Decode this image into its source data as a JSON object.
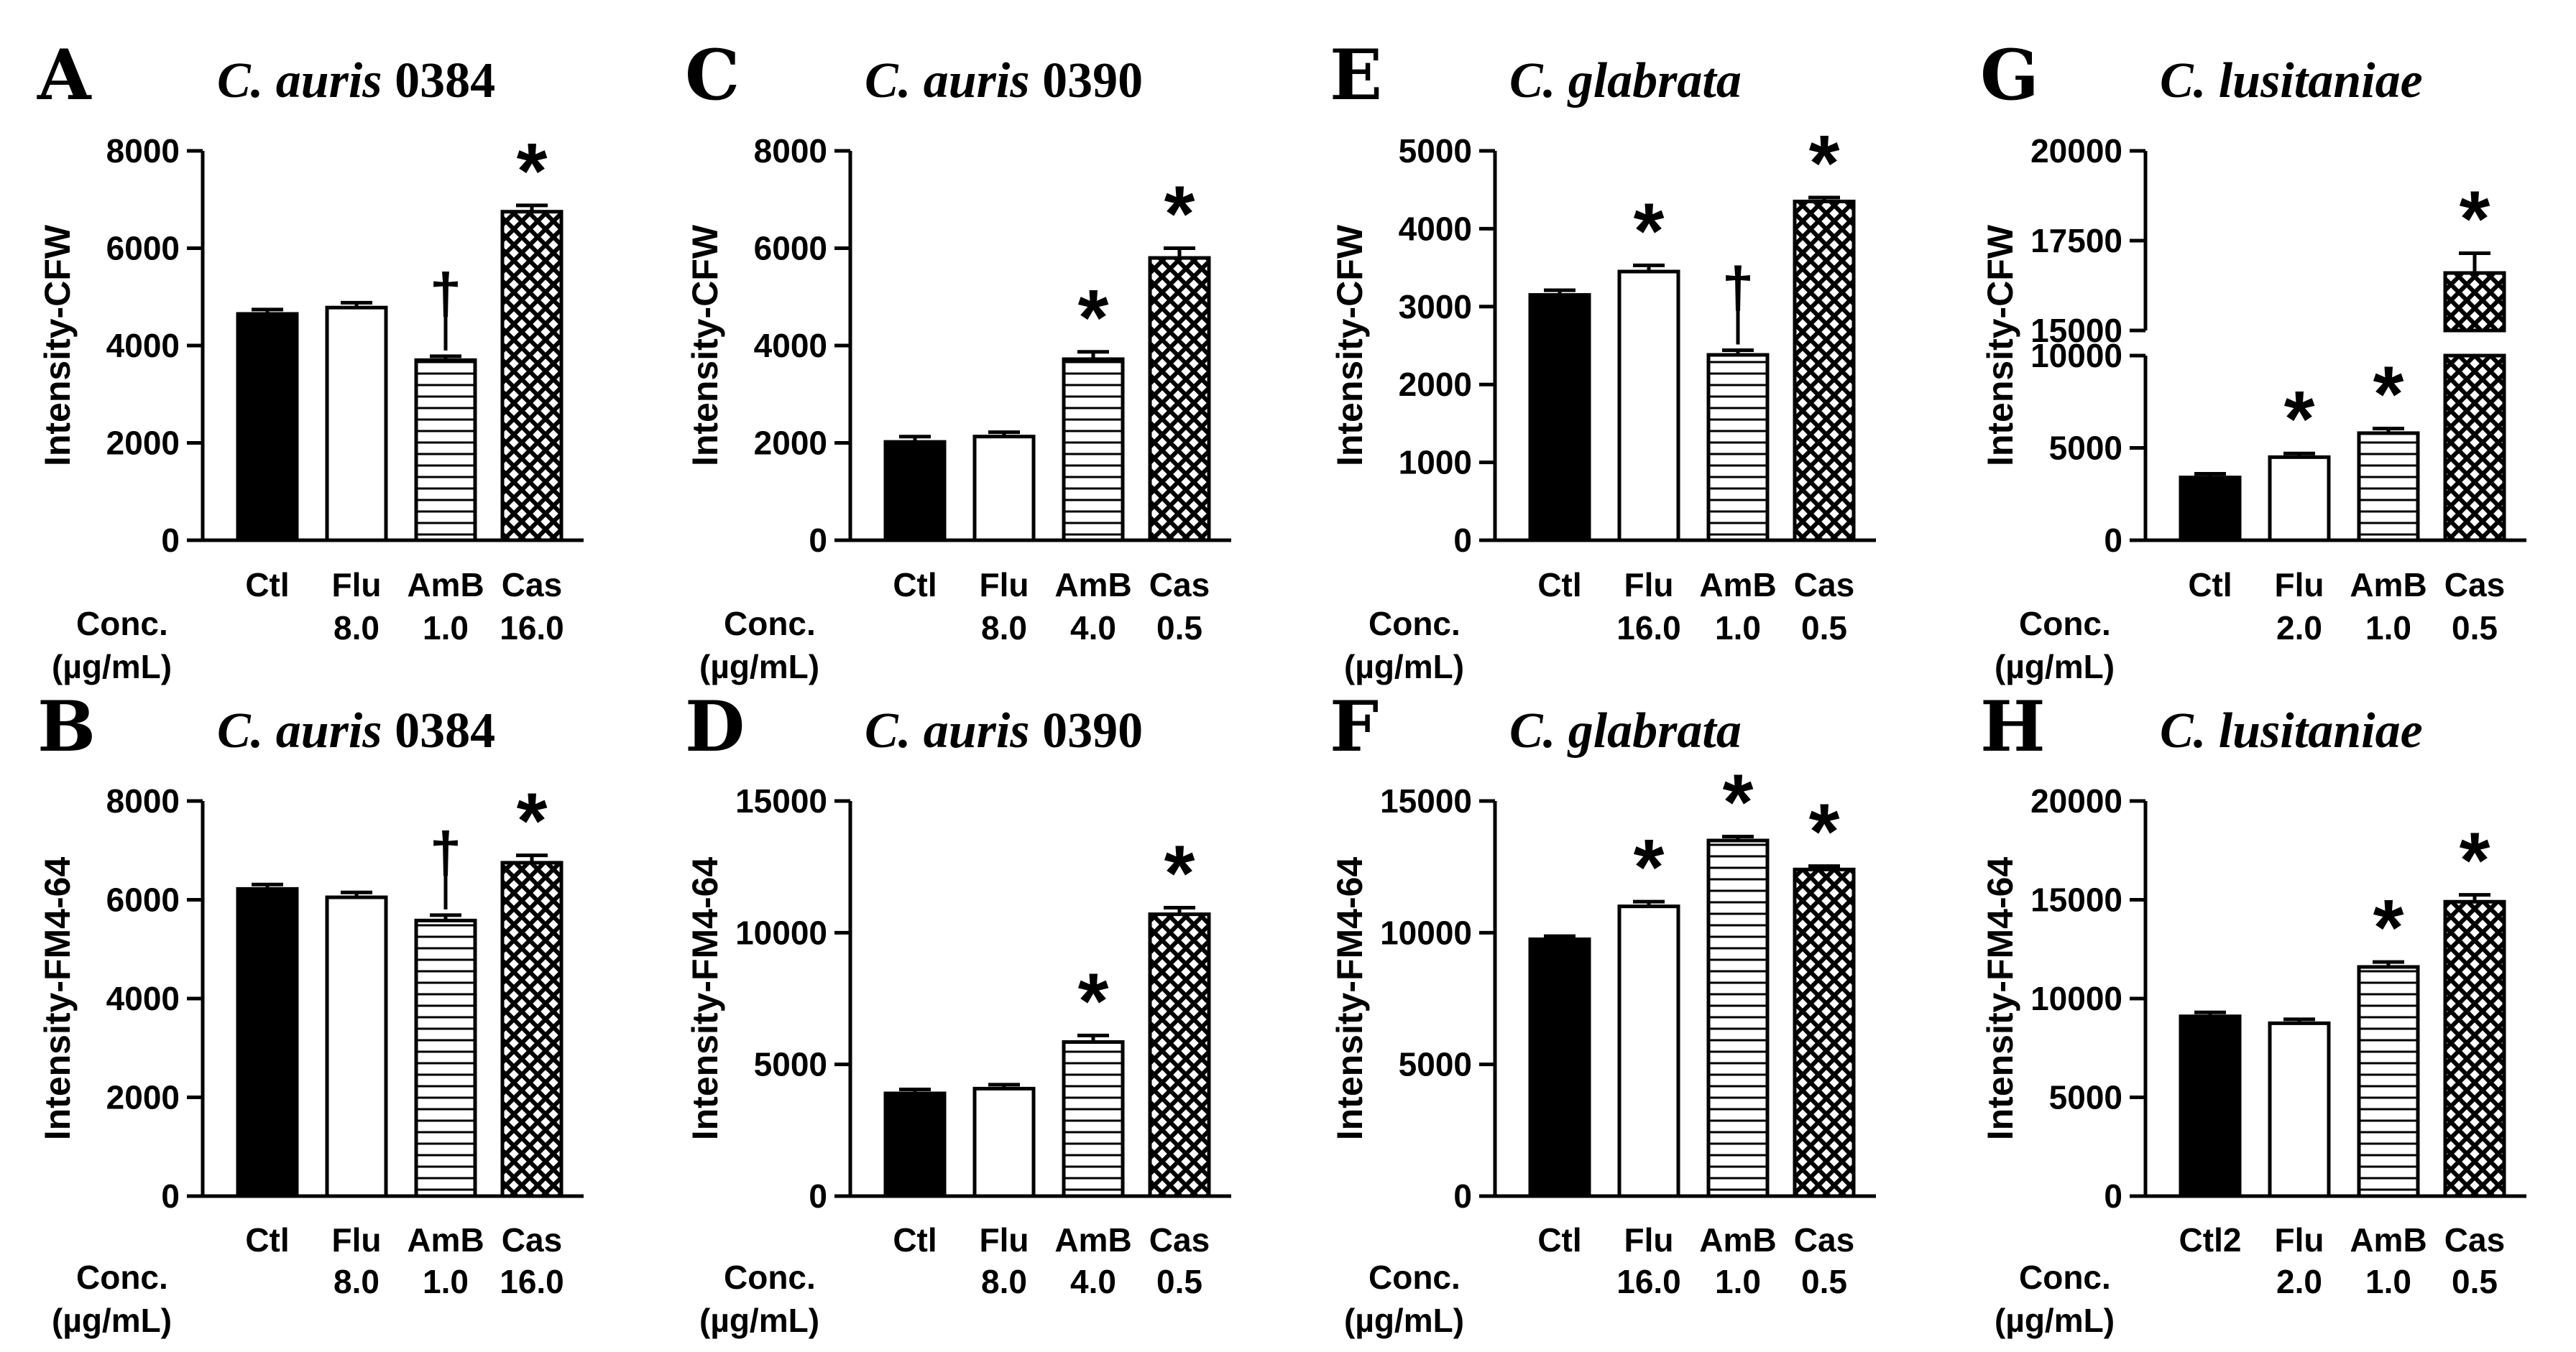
{
  "figure": {
    "conc_label_line1": "Conc.",
    "conc_label_line2": "(µg/mL)"
  },
  "colors": {
    "ink": "#000000",
    "background": "#ffffff"
  },
  "chart_data": [
    {
      "id": "A",
      "letter": "A",
      "title_italic": "C. auris",
      "title_plain": " 0384",
      "type": "bar",
      "ylabel": "Intensity-CFW",
      "ylim": [
        0,
        8000
      ],
      "yticks": [
        0,
        2000,
        4000,
        6000,
        8000
      ],
      "ytick_labels": [
        "0",
        "2000",
        "4000",
        "6000",
        "8000"
      ],
      "categories": [
        "Ctl",
        "Flu",
        "AmB",
        "Cas"
      ],
      "concentrations": [
        "",
        "8.0",
        "1.0",
        "16.0"
      ],
      "values": [
        4650,
        4780,
        3700,
        6750
      ],
      "errors": [
        90,
        100,
        80,
        130
      ],
      "patterns": [
        "solid",
        "open",
        "hlines",
        "cross"
      ],
      "annotations": [
        "",
        "",
        "†",
        "*"
      ]
    },
    {
      "id": "C",
      "letter": "C",
      "title_italic": "C. auris",
      "title_plain": " 0390",
      "type": "bar",
      "ylabel": "Intensity-CFW",
      "ylim": [
        0,
        8000
      ],
      "yticks": [
        0,
        2000,
        4000,
        6000,
        8000
      ],
      "ytick_labels": [
        "0",
        "2000",
        "4000",
        "6000",
        "8000"
      ],
      "categories": [
        "Ctl",
        "Flu",
        "AmB",
        "Cas"
      ],
      "concentrations": [
        "",
        "8.0",
        "4.0",
        "0.5"
      ],
      "values": [
        2020,
        2130,
        3720,
        5800
      ],
      "errors": [
        110,
        90,
        150,
        200
      ],
      "patterns": [
        "solid",
        "open",
        "hlines",
        "cross"
      ],
      "annotations": [
        "",
        "",
        "*",
        "*"
      ]
    },
    {
      "id": "E",
      "letter": "E",
      "title_italic": "C. glabrata",
      "title_plain": "",
      "type": "bar",
      "ylabel": "Intensity-CFW",
      "ylim": [
        0,
        5000
      ],
      "yticks": [
        0,
        1000,
        2000,
        3000,
        4000,
        5000
      ],
      "ytick_labels": [
        "0",
        "1000",
        "2000",
        "3000",
        "4000",
        "5000"
      ],
      "categories": [
        "Ctl",
        "Flu",
        "AmB",
        "Cas"
      ],
      "concentrations": [
        "",
        "16.0",
        "1.0",
        "0.5"
      ],
      "values": [
        3150,
        3450,
        2380,
        4350
      ],
      "errors": [
        60,
        80,
        60,
        50
      ],
      "patterns": [
        "solid",
        "open",
        "hlines",
        "cross"
      ],
      "annotations": [
        "",
        "*",
        "†",
        "*"
      ]
    },
    {
      "id": "G",
      "letter": "G",
      "title_italic": "C. lusitaniae",
      "title_plain": "",
      "type": "bar",
      "ylabel": "Intensity-CFW",
      "y_axis_break": {
        "lower_range": [
          0,
          10000
        ],
        "upper_range": [
          15000,
          20000
        ]
      },
      "yticks": [
        0,
        5000,
        10000,
        15000,
        17500,
        20000
      ],
      "ytick_labels": [
        "0",
        "5000",
        "10000",
        "15000",
        "17500",
        "20000"
      ],
      "categories": [
        "Ctl",
        "Flu",
        "AmB",
        "Cas"
      ],
      "concentrations": [
        "",
        "2.0",
        "1.0",
        "0.5"
      ],
      "values": [
        3400,
        4500,
        5800,
        16600
      ],
      "errors": [
        200,
        200,
        250,
        550
      ],
      "patterns": [
        "solid",
        "open",
        "hlines",
        "cross"
      ],
      "annotations": [
        "",
        "*",
        "*",
        "*"
      ]
    },
    {
      "id": "B",
      "letter": "B",
      "title_italic": "C. auris",
      "title_plain": " 0384",
      "type": "bar",
      "ylabel": "Intensity-FM4-64",
      "ylim": [
        0,
        8000
      ],
      "yticks": [
        0,
        2000,
        4000,
        6000,
        8000
      ],
      "ytick_labels": [
        "0",
        "2000",
        "4000",
        "6000",
        "8000"
      ],
      "categories": [
        "Ctl",
        "Flu",
        "AmB",
        "Cas"
      ],
      "concentrations": [
        "",
        "8.0",
        "1.0",
        "16.0"
      ],
      "values": [
        6220,
        6050,
        5580,
        6750
      ],
      "errors": [
        90,
        100,
        110,
        150
      ],
      "patterns": [
        "solid",
        "open",
        "hlines",
        "cross"
      ],
      "annotations": [
        "",
        "",
        "†",
        "*"
      ]
    },
    {
      "id": "D",
      "letter": "D",
      "title_italic": "C. auris",
      "title_plain": " 0390",
      "type": "bar",
      "ylabel": "Intensity-FM4-64",
      "ylim": [
        0,
        15000
      ],
      "yticks": [
        0,
        5000,
        10000,
        15000
      ],
      "ytick_labels": [
        "0",
        "5000",
        "10000",
        "15000"
      ],
      "categories": [
        "Ctl",
        "Flu",
        "AmB",
        "Cas"
      ],
      "concentrations": [
        "",
        "8.0",
        "4.0",
        "0.5"
      ],
      "values": [
        3900,
        4080,
        5850,
        10700
      ],
      "errors": [
        150,
        150,
        250,
        250
      ],
      "patterns": [
        "solid",
        "open",
        "hlines",
        "cross"
      ],
      "annotations": [
        "",
        "",
        "*",
        "*"
      ]
    },
    {
      "id": "F",
      "letter": "F",
      "title_italic": "C. glabrata",
      "title_plain": "",
      "type": "bar",
      "ylabel": "Intensity-FM4-64",
      "ylim": [
        0,
        15000
      ],
      "yticks": [
        0,
        5000,
        10000,
        15000
      ],
      "ytick_labels": [
        "0",
        "5000",
        "10000",
        "15000"
      ],
      "categories": [
        "Ctl",
        "Flu",
        "AmB",
        "Cas"
      ],
      "concentrations": [
        "",
        "16.0",
        "1.0",
        "0.5"
      ],
      "values": [
        9750,
        11000,
        13500,
        12400
      ],
      "errors": [
        120,
        180,
        150,
        130
      ],
      "patterns": [
        "solid",
        "open",
        "hlines",
        "cross"
      ],
      "annotations": [
        "",
        "*",
        "*",
        "*"
      ]
    },
    {
      "id": "H",
      "letter": "H",
      "title_italic": "C. lusitaniae",
      "title_plain": "",
      "type": "bar",
      "ylabel": "Intensity-FM4-64",
      "ylim": [
        0,
        20000
      ],
      "yticks": [
        0,
        5000,
        10000,
        15000,
        20000
      ],
      "ytick_labels": [
        "0",
        "5000",
        "10000",
        "15000",
        "20000"
      ],
      "categories": [
        "Ctl2",
        "Flu",
        "AmB",
        "Cas"
      ],
      "concentrations": [
        "",
        "2.0",
        "1.0",
        "0.5"
      ],
      "values": [
        9100,
        8750,
        11600,
        14900
      ],
      "errors": [
        200,
        200,
        250,
        350
      ],
      "patterns": [
        "solid",
        "open",
        "hlines",
        "cross"
      ],
      "annotations": [
        "",
        "",
        "*",
        "*"
      ]
    }
  ]
}
